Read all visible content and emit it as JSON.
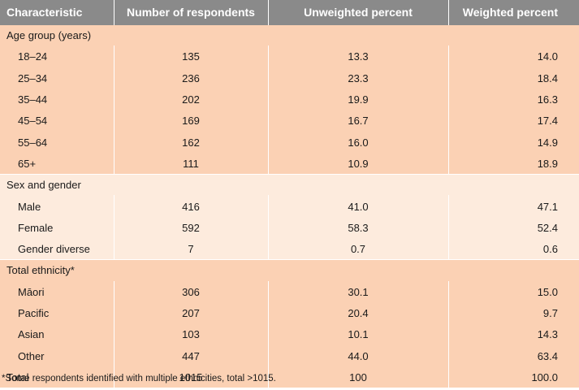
{
  "headers": {
    "characteristic": "Characteristic",
    "respondents": "Number of respondents",
    "unweighted": "Unweighted percent",
    "weighted": "Weighted percent"
  },
  "groups": {
    "age": "Age group (years)",
    "sex": "Sex and gender",
    "ethnicity": "Total ethnicity*"
  },
  "age_rows": [
    {
      "label": "18–24",
      "n": "135",
      "unweighted": "13.3",
      "weighted": "14.0"
    },
    {
      "label": "25–34",
      "n": "236",
      "unweighted": "23.3",
      "weighted": "18.4"
    },
    {
      "label": "35–44",
      "n": "202",
      "unweighted": "19.9",
      "weighted": "16.3"
    },
    {
      "label": "45–54",
      "n": "169",
      "unweighted": "16.7",
      "weighted": "17.4"
    },
    {
      "label": "55–64",
      "n": "162",
      "unweighted": "16.0",
      "weighted": "14.9"
    },
    {
      "label": "65+",
      "n": "111",
      "unweighted": "10.9",
      "weighted": "18.9"
    }
  ],
  "sex_rows": [
    {
      "label": "Male",
      "n": "416",
      "unweighted": "41.0",
      "weighted": "47.1"
    },
    {
      "label": "Female",
      "n": "592",
      "unweighted": "58.3",
      "weighted": "52.4"
    },
    {
      "label": "Gender diverse",
      "n": "7",
      "unweighted": "0.7",
      "weighted": "0.6"
    }
  ],
  "ethnicity_rows": [
    {
      "label": "Māori",
      "n": "306",
      "unweighted": "30.1",
      "weighted": "15.0"
    },
    {
      "label": "Pacific",
      "n": "207",
      "unweighted": "20.4",
      "weighted": "9.7"
    },
    {
      "label": "Asian",
      "n": "103",
      "unweighted": "10.1",
      "weighted": "14.3"
    },
    {
      "label": "Other",
      "n": "447",
      "unweighted": "44.0",
      "weighted": "63.4"
    }
  ],
  "total_row": {
    "label": "Total",
    "n": "1015",
    "unweighted": "100",
    "weighted": "100.0"
  },
  "footnote": "*Some respondents identified with multiple ethnicities, total >1015.",
  "colors": {
    "header_bg": "#8a8a8a",
    "peach": "#fbd1b4",
    "light_peach": "#fdebdd"
  }
}
